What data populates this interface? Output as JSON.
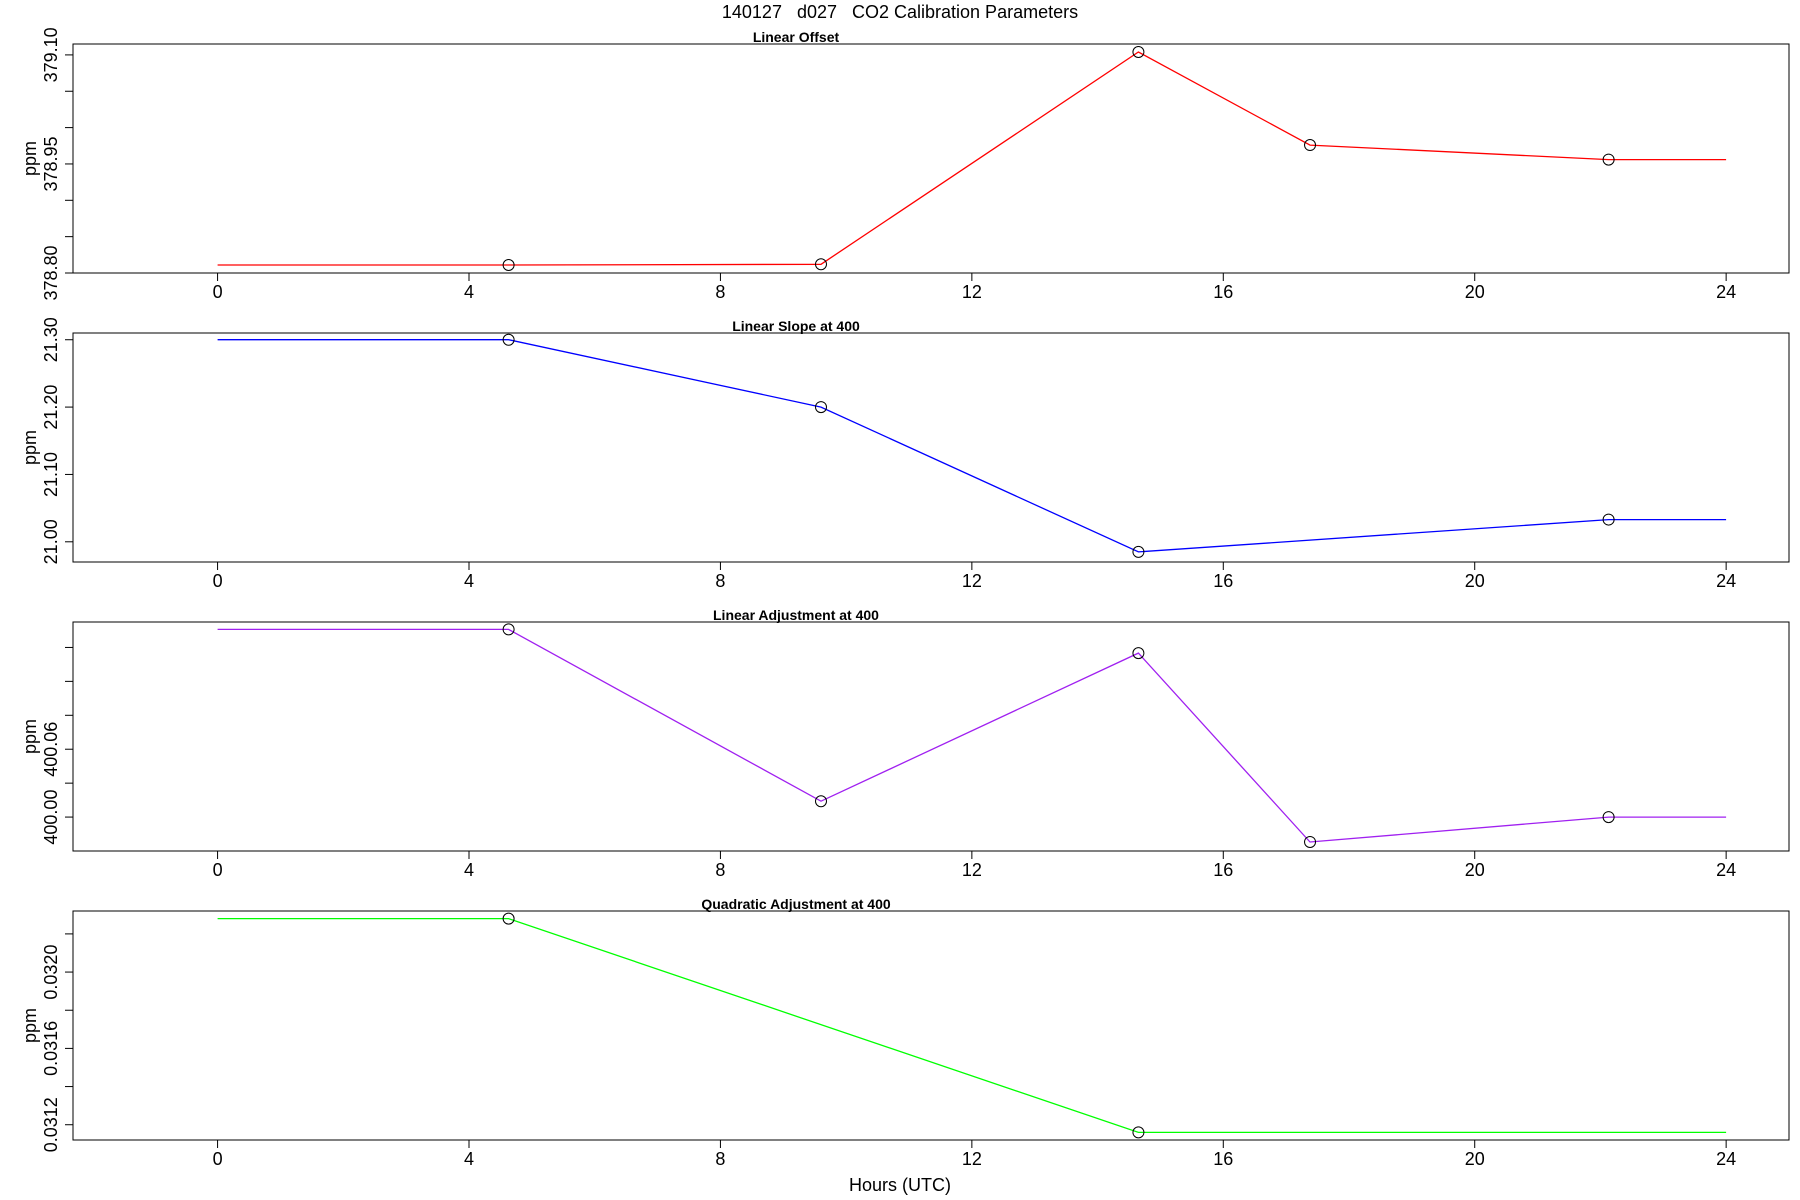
{
  "page": {
    "title": "140127   d027   CO2 Calibration Parameters",
    "xlabel": "Hours (UTC)"
  },
  "chart_data": [
    {
      "type": "line",
      "title": "Linear Offset",
      "ylabel": "ppm",
      "color": "#ff0000",
      "xlim": [
        -2.3,
        25
      ],
      "ylim": [
        378.8,
        379.115
      ],
      "xticks": [
        0,
        4,
        8,
        12,
        16,
        20,
        24
      ],
      "xtick_labels": [
        "0",
        "4",
        "8",
        "12",
        "16",
        "20",
        "24"
      ],
      "yticks": [
        378.8,
        378.85,
        378.9,
        378.95,
        379.0,
        379.05,
        379.1
      ],
      "ytick_labels": [
        "378.80",
        "",
        "",
        "378.95",
        "",
        "",
        "379.10"
      ],
      "line": {
        "x": [
          0.0,
          4.63,
          9.6,
          14.65,
          17.38,
          22.13,
          24.0
        ],
        "y": [
          378.811,
          378.811,
          378.812,
          379.104,
          378.976,
          378.956,
          378.956
        ]
      },
      "points": {
        "x": [
          4.63,
          9.6,
          14.65,
          17.38,
          22.13
        ],
        "y": [
          378.811,
          378.812,
          379.104,
          378.976,
          378.956
        ]
      }
    },
    {
      "type": "line",
      "title": "Linear Slope at 400",
      "ylabel": "ppm",
      "color": "#0000ff",
      "xlim": [
        -2.3,
        25
      ],
      "ylim": [
        20.97,
        21.31
      ],
      "xticks": [
        0,
        4,
        8,
        12,
        16,
        20,
        24
      ],
      "xtick_labels": [
        "0",
        "4",
        "8",
        "12",
        "16",
        "20",
        "24"
      ],
      "yticks": [
        21.0,
        21.1,
        21.2,
        21.3
      ],
      "ytick_labels": [
        "21.00",
        "21.10",
        "21.20",
        "21.30"
      ],
      "line": {
        "x": [
          0.0,
          4.63,
          9.6,
          14.65,
          22.13,
          24.0
        ],
        "y": [
          21.3,
          21.3,
          21.2,
          20.985,
          21.033,
          21.033
        ]
      },
      "points": {
        "x": [
          4.63,
          9.6,
          14.65,
          22.13
        ],
        "y": [
          21.3,
          21.2,
          20.985,
          21.033
        ]
      }
    },
    {
      "type": "line",
      "title": "Linear Adjustment at 400",
      "ylabel": "ppm",
      "color": "#a020f0",
      "xlim": [
        -2.3,
        25
      ],
      "ylim": [
        399.97,
        400.1725
      ],
      "xticks": [
        0,
        4,
        8,
        12,
        16,
        20,
        24
      ],
      "xtick_labels": [
        "0",
        "4",
        "8",
        "12",
        "16",
        "20",
        "24"
      ],
      "yticks": [
        400.0,
        400.03,
        400.06,
        400.09,
        400.12,
        400.15
      ],
      "ytick_labels": [
        "400.00",
        "",
        "400.06",
        "",
        "",
        ""
      ],
      "line": {
        "x": [
          0.0,
          4.63,
          9.6,
          14.65,
          17.38,
          22.13,
          24.0
        ],
        "y": [
          400.166,
          400.166,
          400.014,
          400.145,
          399.978,
          400.0,
          400.0
        ]
      },
      "points": {
        "x": [
          4.63,
          9.6,
          14.65,
          17.38,
          22.13
        ],
        "y": [
          400.166,
          400.014,
          400.145,
          399.978,
          400.0
        ]
      }
    },
    {
      "type": "line",
      "title": "Quadratic Adjustment at 400",
      "ylabel": "ppm",
      "color": "#00ff00",
      "xlim": [
        -2.3,
        25
      ],
      "ylim": [
        0.03112,
        0.03232
      ],
      "xticks": [
        0,
        4,
        8,
        12,
        16,
        20,
        24
      ],
      "xtick_labels": [
        "0",
        "4",
        "8",
        "12",
        "16",
        "20",
        "24"
      ],
      "yticks": [
        0.0312,
        0.0314,
        0.0316,
        0.0318,
        0.032,
        0.0322
      ],
      "ytick_labels": [
        "0.0312",
        "",
        "0.0316",
        "",
        "0.0320",
        ""
      ],
      "line": {
        "x": [
          0.0,
          4.63,
          14.65,
          24.0
        ],
        "y": [
          0.03228,
          0.03228,
          0.03116,
          0.03116
        ]
      },
      "points": {
        "x": [
          4.63,
          14.65
        ],
        "y": [
          0.03228,
          0.03116
        ]
      }
    }
  ]
}
